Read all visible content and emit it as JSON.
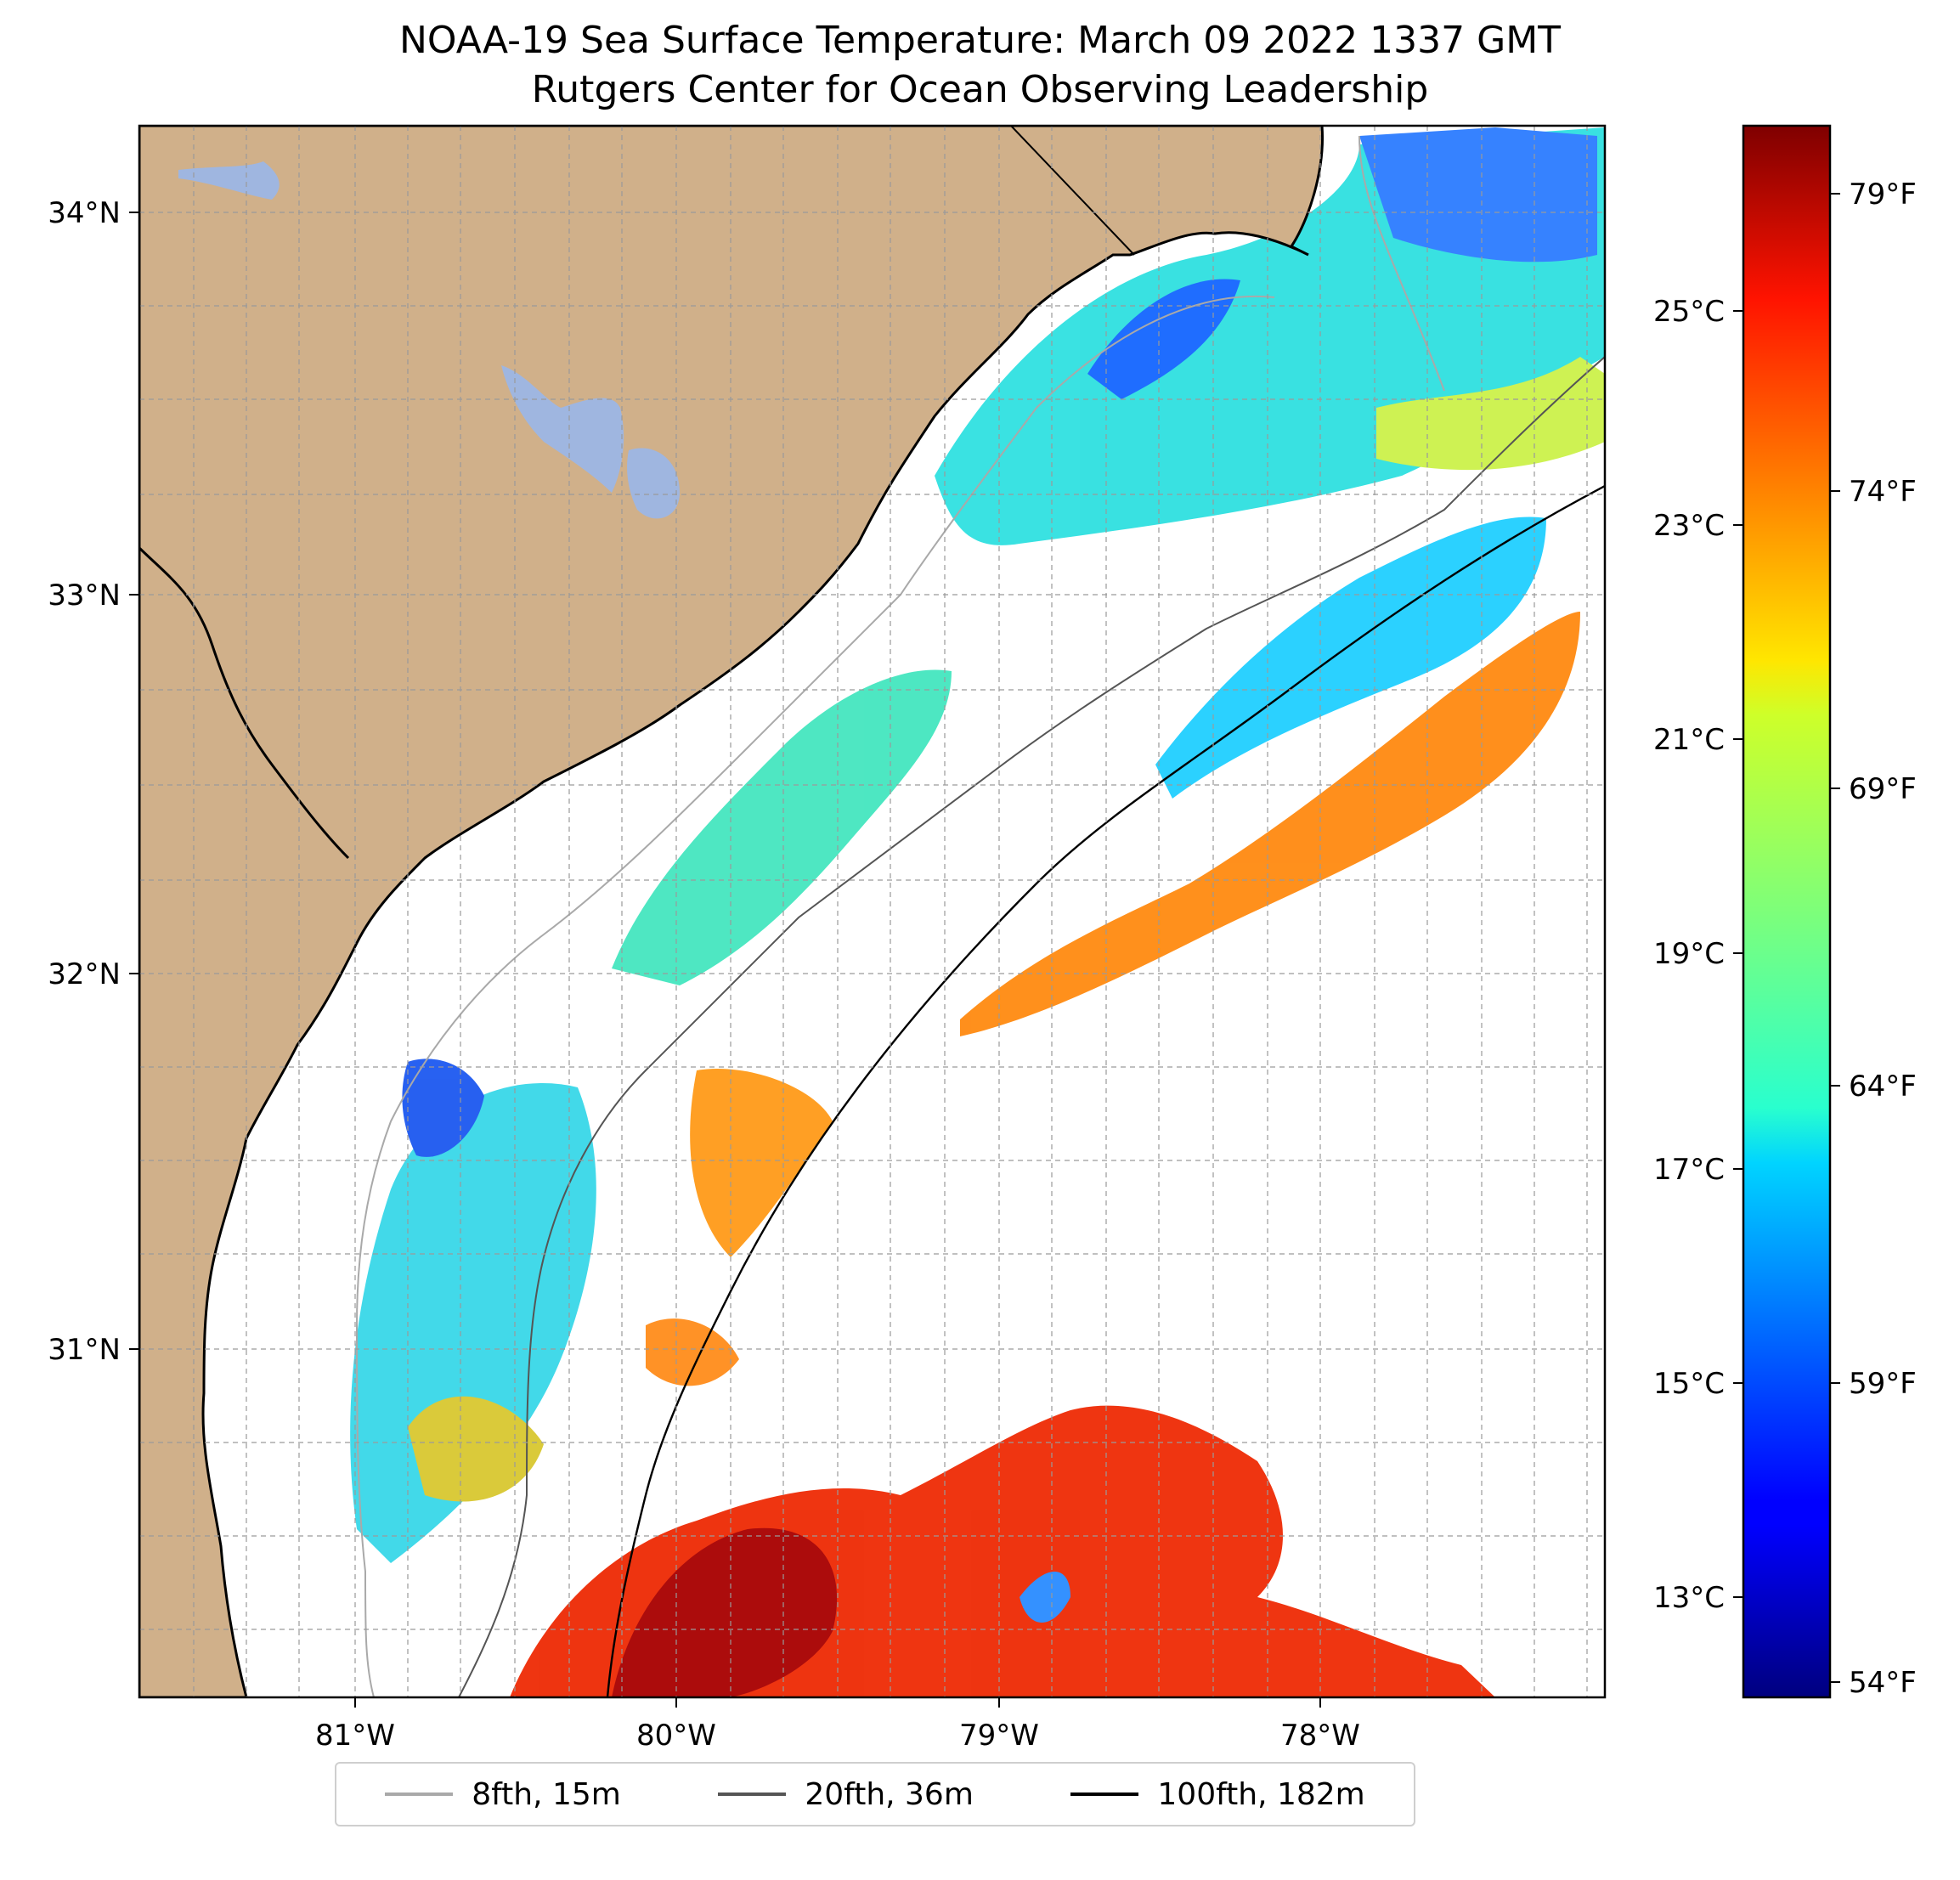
{
  "title": "NOAA-19 Sea Surface Temperature: March 09 2022 1337 GMT",
  "subtitle": "Rutgers Center for Ocean Observing Leadership",
  "map": {
    "longitude_labels": [
      "81°W",
      "80°W",
      "79°W",
      "78°W"
    ],
    "latitude_labels": [
      "34°N",
      "33°N",
      "32°N",
      "31°N"
    ],
    "longitudes": [
      -81,
      -80,
      -79,
      -78
    ],
    "latitudes": [
      34,
      33,
      32,
      31
    ],
    "lon_range": [
      -81.68,
      -77.12
    ],
    "lat_range": [
      30.08,
      34.22
    ],
    "colors": {
      "land": "#d0b08a",
      "lake": "#9fb6e0",
      "missing_data": "#ffffff"
    }
  },
  "colorbar": {
    "celsius_labels": [
      "25°C",
      "23°C",
      "21°C",
      "19°C",
      "17°C",
      "15°C",
      "13°C"
    ],
    "celsius_values": [
      25,
      23,
      21,
      19,
      17,
      15,
      13
    ],
    "fahrenheit_labels": [
      "79°F",
      "74°F",
      "69°F",
      "64°F",
      "59°F",
      "54°F"
    ],
    "fahrenheit_values": [
      79,
      74,
      69,
      64,
      59,
      54
    ],
    "range_c": [
      12.2,
      27.0
    ],
    "colormap": "jet"
  },
  "legend": {
    "items": [
      {
        "label": "8fth, 15m",
        "color": "#a9a9a9"
      },
      {
        "label": "20fth, 36m",
        "color": "#555555"
      },
      {
        "label": "100fth, 182m",
        "color": "#000000"
      }
    ]
  }
}
